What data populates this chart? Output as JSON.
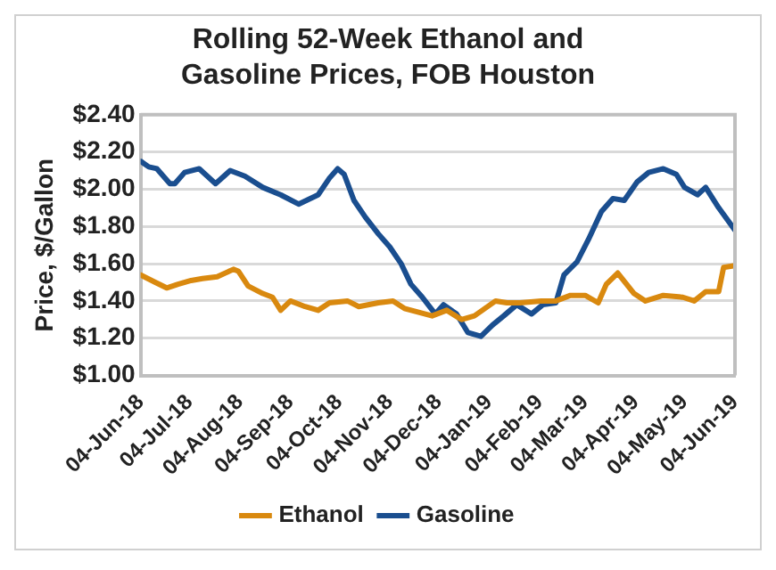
{
  "chart_data": {
    "type": "line",
    "title": "Rolling 52-Week Ethanol and Gasoline Prices, FOB Houston",
    "ylabel": "Price, $/Gallon",
    "xlim": [
      "2018-06-04",
      "2019-06-04"
    ],
    "xticks": [
      {
        "value": "2018-06-04",
        "label": "04-Jun-18"
      },
      {
        "value": "2018-07-04",
        "label": "04-Jul-18"
      },
      {
        "value": "2018-08-04",
        "label": "04-Aug-18"
      },
      {
        "value": "2018-09-04",
        "label": "04-Sep-18"
      },
      {
        "value": "2018-10-04",
        "label": "04-Oct-18"
      },
      {
        "value": "2018-11-04",
        "label": "04-Nov-18"
      },
      {
        "value": "2018-12-04",
        "label": "04-Dec-18"
      },
      {
        "value": "2019-01-04",
        "label": "04-Jan-19"
      },
      {
        "value": "2019-02-04",
        "label": "04-Feb-19"
      },
      {
        "value": "2019-03-04",
        "label": "04-Mar-19"
      },
      {
        "value": "2019-04-04",
        "label": "04-Apr-19"
      },
      {
        "value": "2019-05-04",
        "label": "04-May-19"
      },
      {
        "value": "2019-06-04",
        "label": "04-Jun-19"
      }
    ],
    "ylim": [
      1.0,
      2.4
    ],
    "yticks": [
      {
        "value": 1.0,
        "label": "$1.00"
      },
      {
        "value": 1.2,
        "label": "$1.20"
      },
      {
        "value": 1.4,
        "label": "$1.40"
      },
      {
        "value": 1.6,
        "label": "$1.60"
      },
      {
        "value": 1.8,
        "label": "$1.80"
      },
      {
        "value": 2.0,
        "label": "$2.00"
      },
      {
        "value": 2.2,
        "label": "$2.20"
      },
      {
        "value": 2.4,
        "label": "$2.40"
      }
    ],
    "grid": "y",
    "legend": "bottom",
    "marker": "none",
    "line_style": "solid",
    "series": [
      {
        "name": "Ethanol",
        "color": "#d9890f",
        "x": [
          "2018-06-04",
          "2018-06-13",
          "2018-06-20",
          "2018-06-27",
          "2018-07-05",
          "2018-07-12",
          "2018-07-21",
          "2018-07-31",
          "2018-08-03",
          "2018-08-09",
          "2018-08-18",
          "2018-08-24",
          "2018-08-29",
          "2018-09-04",
          "2018-09-13",
          "2018-09-21",
          "2018-09-28",
          "2018-10-09",
          "2018-10-16",
          "2018-10-28",
          "2018-11-06",
          "2018-11-13",
          "2018-11-30",
          "2018-12-09",
          "2018-12-18",
          "2018-12-26",
          "2019-01-08",
          "2019-01-15",
          "2019-01-23",
          "2019-02-05",
          "2019-02-14",
          "2019-02-23",
          "2019-03-04",
          "2019-03-12",
          "2019-03-17",
          "2019-03-24",
          "2019-04-03",
          "2019-04-10",
          "2019-04-21",
          "2019-05-03",
          "2019-05-10",
          "2019-05-17",
          "2019-05-25",
          "2019-05-28",
          "2019-06-04"
        ],
        "values": [
          1.54,
          1.5,
          1.47,
          1.49,
          1.51,
          1.52,
          1.53,
          1.57,
          1.56,
          1.48,
          1.44,
          1.42,
          1.35,
          1.4,
          1.37,
          1.35,
          1.39,
          1.4,
          1.37,
          1.39,
          1.4,
          1.36,
          1.32,
          1.35,
          1.3,
          1.32,
          1.4,
          1.39,
          1.39,
          1.4,
          1.4,
          1.43,
          1.43,
          1.39,
          1.49,
          1.55,
          1.44,
          1.4,
          1.43,
          1.42,
          1.4,
          1.45,
          1.45,
          1.58,
          1.59
        ]
      },
      {
        "name": "Gasoline",
        "color": "#1a4e8f",
        "x": [
          "2018-06-04",
          "2018-06-09",
          "2018-06-14",
          "2018-06-22",
          "2018-06-25",
          "2018-07-01",
          "2018-07-10",
          "2018-07-20",
          "2018-07-29",
          "2018-08-07",
          "2018-08-18",
          "2018-08-29",
          "2018-09-09",
          "2018-09-21",
          "2018-09-28",
          "2018-10-03",
          "2018-10-07",
          "2018-10-13",
          "2018-10-20",
          "2018-10-28",
          "2018-11-04",
          "2018-11-11",
          "2018-11-17",
          "2018-11-24",
          "2018-12-02",
          "2018-12-07",
          "2018-12-15",
          "2018-12-22",
          "2018-12-30",
          "2019-01-06",
          "2019-01-13",
          "2019-01-21",
          "2019-01-30",
          "2019-02-06",
          "2019-02-14",
          "2019-02-19",
          "2019-02-27",
          "2019-03-06",
          "2019-03-14",
          "2019-03-21",
          "2019-03-28",
          "2019-04-05",
          "2019-04-12",
          "2019-04-21",
          "2019-04-29",
          "2019-05-04",
          "2019-05-12",
          "2019-05-17",
          "2019-05-25",
          "2019-06-04"
        ],
        "values": [
          2.15,
          2.12,
          2.11,
          2.03,
          2.03,
          2.09,
          2.11,
          2.03,
          2.1,
          2.07,
          2.01,
          1.97,
          1.92,
          1.97,
          2.06,
          2.11,
          2.08,
          1.94,
          1.85,
          1.76,
          1.69,
          1.6,
          1.49,
          1.42,
          1.33,
          1.38,
          1.33,
          1.23,
          1.21,
          1.27,
          1.32,
          1.38,
          1.33,
          1.38,
          1.39,
          1.54,
          1.61,
          1.73,
          1.88,
          1.95,
          1.94,
          2.04,
          2.09,
          2.11,
          2.08,
          2.01,
          1.97,
          2.01,
          1.9,
          1.78
        ]
      }
    ]
  }
}
